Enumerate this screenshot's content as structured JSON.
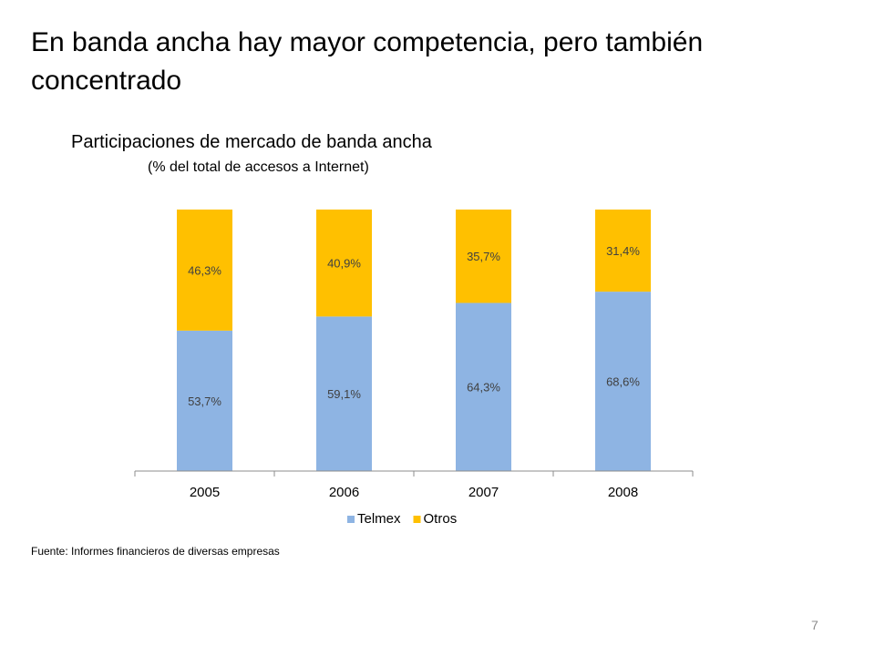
{
  "slide": {
    "title": "En banda ancha hay mayor competencia, pero también concentrado",
    "page_number": "7"
  },
  "chart_data": {
    "type": "bar",
    "stacked": true,
    "title": "Participaciones de mercado de banda ancha",
    "subtitle": "(% del total de accesos a Internet)",
    "categories": [
      "2005",
      "2006",
      "2007",
      "2008"
    ],
    "series": [
      {
        "name": "Telmex",
        "values": [
          53.7,
          59.1,
          64.3,
          68.6
        ],
        "labels": [
          "53,7%",
          "59,1%",
          "64,3%",
          "68,6%"
        ],
        "color": "#8EB4E3"
      },
      {
        "name": "Otros",
        "values": [
          46.3,
          40.9,
          35.7,
          31.4
        ],
        "labels": [
          "46,3%",
          "40,9%",
          "35,7%",
          "31,4%"
        ],
        "color": "#FFC000"
      }
    ],
    "ylim": [
      0,
      100
    ],
    "grid": false,
    "legend": "bottom"
  },
  "source": {
    "text": "Fuente: Informes financieros de diversas empresas"
  }
}
